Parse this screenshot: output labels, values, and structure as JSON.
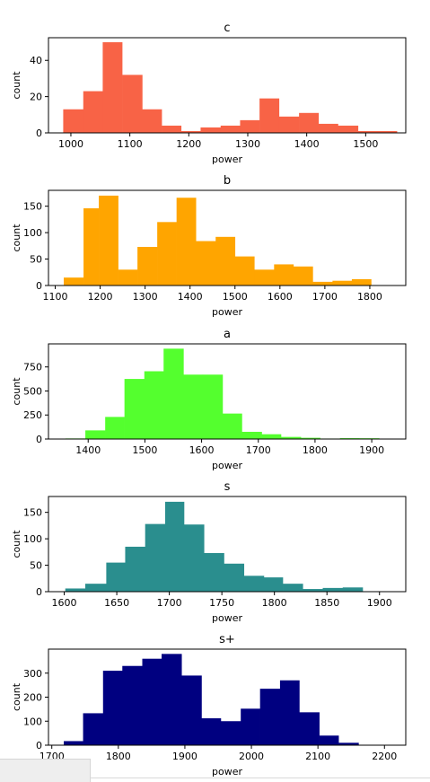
{
  "chart_data": [
    {
      "type": "bar",
      "title": "c",
      "xlabel": "power",
      "ylabel": "count",
      "color": "#f86346",
      "xlim": [
        962,
        1568
      ],
      "ylim": [
        0,
        52.5
      ],
      "xticks": [
        1000,
        1100,
        1200,
        1300,
        1400,
        1500
      ],
      "yticks": [
        0,
        20,
        40
      ],
      "bins": [
        [
          987,
          1021,
          13
        ],
        [
          1021,
          1054,
          23
        ],
        [
          1054,
          1087,
          50
        ],
        [
          1087,
          1121,
          32
        ],
        [
          1121,
          1154,
          13
        ],
        [
          1154,
          1187,
          4
        ],
        [
          1187,
          1220,
          1
        ],
        [
          1220,
          1254,
          3
        ],
        [
          1254,
          1287,
          4
        ],
        [
          1287,
          1320,
          7
        ],
        [
          1320,
          1353,
          19
        ],
        [
          1353,
          1387,
          9
        ],
        [
          1387,
          1420,
          11
        ],
        [
          1420,
          1453,
          5
        ],
        [
          1453,
          1487,
          4
        ],
        [
          1487,
          1520,
          1
        ],
        [
          1520,
          1553,
          1
        ]
      ]
    },
    {
      "type": "bar",
      "title": "b",
      "xlabel": "power",
      "ylabel": "count",
      "color": "#ffa500",
      "xlim": [
        1085,
        1880
      ],
      "ylim": [
        0,
        180
      ],
      "xticks": [
        1100,
        1200,
        1300,
        1400,
        1500,
        1600,
        1700,
        1800
      ],
      "yticks": [
        0,
        50,
        100,
        150
      ],
      "bins": [
        [
          1119,
          1163,
          15
        ],
        [
          1163,
          1197,
          146
        ],
        [
          1197,
          1240,
          170
        ],
        [
          1240,
          1283,
          30
        ],
        [
          1283,
          1327,
          73
        ],
        [
          1327,
          1370,
          120
        ],
        [
          1370,
          1413,
          166
        ],
        [
          1413,
          1457,
          84
        ],
        [
          1457,
          1500,
          92
        ],
        [
          1500,
          1543,
          55
        ],
        [
          1543,
          1587,
          30
        ],
        [
          1587,
          1630,
          40
        ],
        [
          1630,
          1673,
          36
        ],
        [
          1673,
          1717,
          7
        ],
        [
          1717,
          1760,
          9
        ],
        [
          1760,
          1803,
          12
        ]
      ]
    },
    {
      "type": "bar",
      "title": "a",
      "xlabel": "power",
      "ylabel": "count",
      "color": "#54ff2e",
      "xlim": [
        1330,
        1960
      ],
      "ylim": [
        0,
        990
      ],
      "xticks": [
        1400,
        1500,
        1600,
        1700,
        1800,
        1900
      ],
      "yticks": [
        0,
        250,
        500,
        750
      ],
      "bins": [
        [
          1360,
          1395,
          6
        ],
        [
          1395,
          1430,
          90
        ],
        [
          1430,
          1464,
          230
        ],
        [
          1464,
          1499,
          625
        ],
        [
          1499,
          1533,
          705
        ],
        [
          1533,
          1568,
          940
        ],
        [
          1568,
          1602,
          670
        ],
        [
          1602,
          1637,
          670
        ],
        [
          1637,
          1671,
          265
        ],
        [
          1671,
          1706,
          75
        ],
        [
          1706,
          1740,
          50
        ],
        [
          1740,
          1775,
          22
        ],
        [
          1775,
          1809,
          13
        ],
        [
          1809,
          1844,
          5
        ],
        [
          1844,
          1878,
          9
        ],
        [
          1878,
          1913,
          8
        ]
      ]
    },
    {
      "type": "bar",
      "title": "s",
      "xlabel": "power",
      "ylabel": "count",
      "color": "#2a8e8e",
      "xlim": [
        1585,
        1925
      ],
      "ylim": [
        0,
        180
      ],
      "xticks": [
        1600,
        1650,
        1700,
        1750,
        1800,
        1850,
        1900
      ],
      "yticks": [
        0,
        50,
        100,
        150
      ],
      "bins": [
        [
          1601,
          1620,
          6
        ],
        [
          1620,
          1640,
          15
        ],
        [
          1640,
          1658,
          55
        ],
        [
          1658,
          1677,
          85
        ],
        [
          1677,
          1696,
          128
        ],
        [
          1696,
          1714,
          170
        ],
        [
          1714,
          1733,
          127
        ],
        [
          1733,
          1752,
          73
        ],
        [
          1752,
          1771,
          53
        ],
        [
          1771,
          1790,
          30
        ],
        [
          1790,
          1808,
          27
        ],
        [
          1808,
          1827,
          15
        ],
        [
          1827,
          1846,
          5
        ],
        [
          1846,
          1865,
          7
        ],
        [
          1865,
          1884,
          8
        ]
      ]
    },
    {
      "type": "bar",
      "title": "s+",
      "xlabel": "power",
      "ylabel": "count",
      "color": "#000080",
      "xlim": [
        1695,
        2232
      ],
      "ylim": [
        0,
        400
      ],
      "xticks": [
        1700,
        1800,
        1900,
        2000,
        2100,
        2200
      ],
      "yticks": [
        0,
        100,
        200,
        300
      ],
      "bins": [
        [
          1718,
          1747,
          17
        ],
        [
          1747,
          1777,
          133
        ],
        [
          1777,
          1806,
          310
        ],
        [
          1806,
          1836,
          330
        ],
        [
          1836,
          1865,
          360
        ],
        [
          1865,
          1895,
          380
        ],
        [
          1895,
          1925,
          290
        ],
        [
          1925,
          1954,
          112
        ],
        [
          1954,
          1984,
          100
        ],
        [
          1984,
          2013,
          152
        ],
        [
          2013,
          2043,
          235
        ],
        [
          2043,
          2072,
          270
        ],
        [
          2072,
          2102,
          137
        ],
        [
          2102,
          2131,
          40
        ],
        [
          2131,
          2161,
          10
        ]
      ]
    }
  ]
}
